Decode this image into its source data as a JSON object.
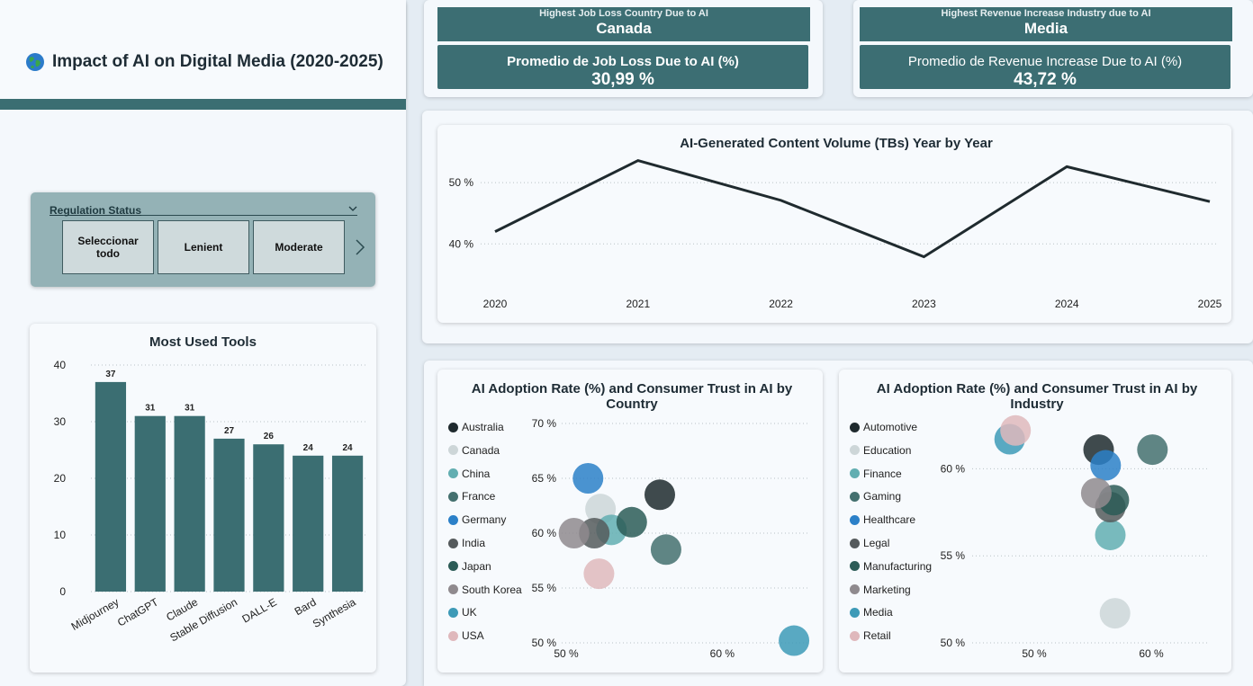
{
  "header": {
    "icon": "globe-icon",
    "title": "Impact of AI on Digital Media (2020-2025)"
  },
  "kpis": [
    {
      "head_label": "Highest Job Loss Country Due to AI",
      "head_value": "Canada",
      "body_label": "Promedio de Job Loss Due to AI (%)",
      "body_value": "30,99 %"
    },
    {
      "head_label": "Highest Revenue Increase Industry due to AI",
      "head_value": "Media",
      "body_label": "Promedio de Revenue Increase Due to AI (%)",
      "body_value": "43,72 %"
    }
  ],
  "slicer": {
    "title": "Regulation Status",
    "options": [
      "Seleccionar todo",
      "Lenient",
      "Moderate"
    ]
  },
  "colors": {
    "teal": "#3b6e72",
    "dark": "#1f2a2e",
    "accent": "#3c6e73"
  },
  "chart_data": [
    {
      "type": "bar",
      "title": "Most Used Tools",
      "categories": [
        "Midjourney",
        "ChatGPT",
        "Claude",
        "Stable Diffusion",
        "DALL-E",
        "Bard",
        "Synthesia"
      ],
      "values": [
        37,
        31,
        31,
        27,
        26,
        24,
        24
      ],
      "yticks": [
        "0",
        "10",
        "20",
        "30",
        "40"
      ],
      "ylim": [
        0,
        40
      ],
      "grid": true
    },
    {
      "type": "line",
      "title": "AI-Generated Content Volume (TBs) Year by Year",
      "x": [
        "2020",
        "2021",
        "2022",
        "2023",
        "2024",
        "2025"
      ],
      "values": [
        42,
        53.6,
        47.1,
        37.9,
        52.6,
        46.9
      ],
      "yticks": [
        "40 %",
        "50 %"
      ],
      "ylim": [
        33,
        55
      ],
      "grid": true
    },
    {
      "type": "scatter",
      "title": "AI Adoption Rate (%) and Consumer Trust in AI by Country",
      "legend": [
        "Australia",
        "Canada",
        "China",
        "France",
        "Germany",
        "India",
        "Japan",
        "South Korea",
        "UK",
        "USA"
      ],
      "colors": [
        "#1f2a2e",
        "#cdd6d8",
        "#62aeb1",
        "#44706f",
        "#2b80c8",
        "#555a5c",
        "#2c5c57",
        "#8f8a8e",
        "#3d9ab7",
        "#dfb8bc"
      ],
      "xticks": [
        "50 %",
        "60 %"
      ],
      "yticks": [
        "50 %",
        "55 %",
        "60 %",
        "65 %",
        "70 %"
      ],
      "xlim": [
        50,
        65
      ],
      "ylim": [
        50,
        70
      ],
      "points": [
        {
          "name": "Australia",
          "x": 56,
          "y": 63.5
        },
        {
          "name": "Canada",
          "x": 52.2,
          "y": 62.2
        },
        {
          "name": "China",
          "x": 52.9,
          "y": 60.3
        },
        {
          "name": "France",
          "x": 56.4,
          "y": 58.5
        },
        {
          "name": "Germany",
          "x": 51.4,
          "y": 65
        },
        {
          "name": "India",
          "x": 51.8,
          "y": 60
        },
        {
          "name": "Japan",
          "x": 54.2,
          "y": 61
        },
        {
          "name": "South Korea",
          "x": 50.5,
          "y": 60
        },
        {
          "name": "UK",
          "x": 64.6,
          "y": 50.2
        },
        {
          "name": "USA",
          "x": 52.1,
          "y": 56.3
        }
      ]
    },
    {
      "type": "scatter",
      "title": "AI Adoption Rate (%) and Consumer Trust in AI by Industry",
      "legend": [
        "Automotive",
        "Education",
        "Finance",
        "Gaming",
        "Healthcare",
        "Legal",
        "Manufacturing",
        "Marketing",
        "Media",
        "Retail"
      ],
      "colors": [
        "#1f2a2e",
        "#cdd6d8",
        "#62aeb1",
        "#44706f",
        "#2b80c8",
        "#555a5c",
        "#2c5c57",
        "#8f8a8e",
        "#3d9ab7",
        "#dfb8bc"
      ],
      "xticks": [
        "50 %",
        "60 %"
      ],
      "yticks": [
        "50 %",
        "55 %",
        "60 %"
      ],
      "xlim": [
        45,
        65
      ],
      "ylim": [
        50,
        62.5
      ],
      "points": [
        {
          "name": "Automotive",
          "x": 55.5,
          "y": 61.1
        },
        {
          "name": "Education",
          "x": 56.9,
          "y": 51.7
        },
        {
          "name": "Finance",
          "x": 56.5,
          "y": 56.2
        },
        {
          "name": "Gaming",
          "x": 60.1,
          "y": 61.1
        },
        {
          "name": "Healthcare",
          "x": 56.1,
          "y": 60.2
        },
        {
          "name": "Legal",
          "x": 56.5,
          "y": 57.8
        },
        {
          "name": "Manufacturing",
          "x": 56.8,
          "y": 58.2
        },
        {
          "name": "Marketing",
          "x": 55.3,
          "y": 58.6
        },
        {
          "name": "Media",
          "x": 47.9,
          "y": 61.7
        },
        {
          "name": "Retail",
          "x": 48.4,
          "y": 62.2
        }
      ]
    }
  ]
}
